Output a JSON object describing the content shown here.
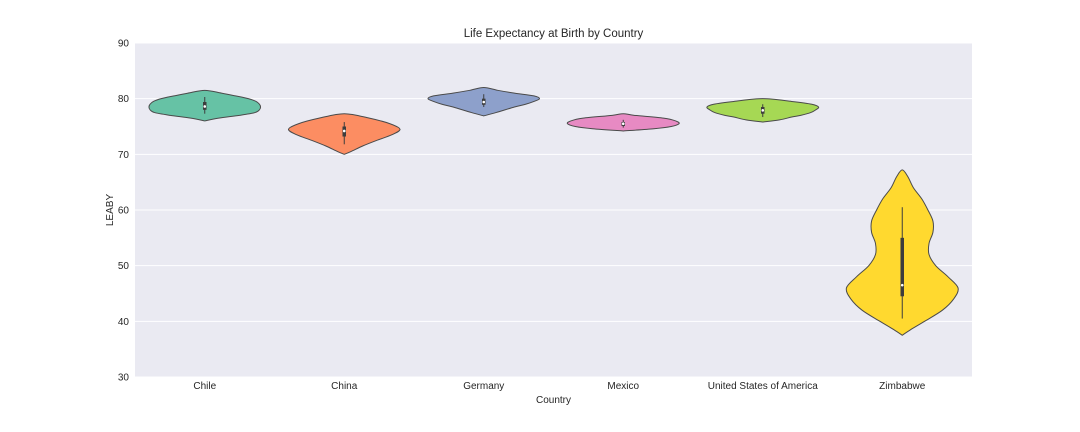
{
  "chart_data": {
    "type": "violin",
    "title": "Life Expectancy at Birth by Country",
    "xlabel": "Country",
    "ylabel": "LEABY",
    "ylim": [
      30,
      90
    ],
    "yticks": [
      30,
      40,
      50,
      60,
      70,
      80,
      90
    ],
    "grid": true,
    "categories": [
      "Chile",
      "China",
      "Germany",
      "Mexico",
      "United States of America",
      "Zimbabwe"
    ],
    "colors": [
      "#66c2a5",
      "#fc8d62",
      "#8da0cb",
      "#e78ac3",
      "#a6d854",
      "#ffd92f"
    ],
    "violins": [
      {
        "name": "Chile",
        "profile": [
          [
            76.0,
            0.0
          ],
          [
            76.5,
            0.25
          ],
          [
            77.0,
            0.62
          ],
          [
            77.5,
            0.9
          ],
          [
            78.0,
            0.98
          ],
          [
            78.5,
            1.0
          ],
          [
            79.0,
            0.98
          ],
          [
            79.5,
            0.92
          ],
          [
            80.0,
            0.78
          ],
          [
            80.5,
            0.55
          ],
          [
            81.0,
            0.3
          ],
          [
            81.5,
            0.0
          ]
        ],
        "q1": 78.0,
        "median": 78.6,
        "q3": 79.4,
        "whisker_low": 77.3,
        "whisker_high": 80.3
      },
      {
        "name": "China",
        "profile": [
          [
            70.0,
            0.0
          ],
          [
            70.5,
            0.12
          ],
          [
            71.5,
            0.33
          ],
          [
            72.5,
            0.58
          ],
          [
            73.5,
            0.85
          ],
          [
            74.5,
            1.0
          ],
          [
            75.5,
            0.82
          ],
          [
            76.5,
            0.45
          ],
          [
            77.3,
            0.0
          ]
        ],
        "q1": 73.2,
        "median": 74.2,
        "q3": 75.0,
        "whisker_low": 71.8,
        "whisker_high": 75.8
      },
      {
        "name": "Germany",
        "profile": [
          [
            76.9,
            0.0
          ],
          [
            77.5,
            0.22
          ],
          [
            78.5,
            0.55
          ],
          [
            79.0,
            0.75
          ],
          [
            79.5,
            0.9
          ],
          [
            80.0,
            1.0
          ],
          [
            80.5,
            0.9
          ],
          [
            81.0,
            0.55
          ],
          [
            81.5,
            0.25
          ],
          [
            82.0,
            0.0
          ]
        ],
        "q1": 78.9,
        "median": 79.4,
        "q3": 80.0,
        "whisker_low": 78.5,
        "whisker_high": 80.8
      },
      {
        "name": "Mexico",
        "profile": [
          [
            74.2,
            0.0
          ],
          [
            74.6,
            0.55
          ],
          [
            75.0,
            0.86
          ],
          [
            75.5,
            1.0
          ],
          [
            76.0,
            0.94
          ],
          [
            76.5,
            0.72
          ],
          [
            77.0,
            0.2
          ],
          [
            77.3,
            0.0
          ]
        ],
        "q1": 75.1,
        "median": 75.5,
        "q3": 75.8,
        "whisker_low": 74.8,
        "whisker_high": 76.2
      },
      {
        "name": "United States of America",
        "profile": [
          [
            75.8,
            0.0
          ],
          [
            76.2,
            0.3
          ],
          [
            76.7,
            0.52
          ],
          [
            77.0,
            0.68
          ],
          [
            77.5,
            0.86
          ],
          [
            78.0,
            0.95
          ],
          [
            78.5,
            1.0
          ],
          [
            79.0,
            0.88
          ],
          [
            79.5,
            0.52
          ],
          [
            80.0,
            0.0
          ]
        ],
        "q1": 77.3,
        "median": 77.9,
        "q3": 78.5,
        "whisker_low": 76.7,
        "whisker_high": 79.0
      },
      {
        "name": "Zimbabwe",
        "profile": [
          [
            37.5,
            0.0
          ],
          [
            38.5,
            0.15
          ],
          [
            40.0,
            0.4
          ],
          [
            42.0,
            0.72
          ],
          [
            44.0,
            0.92
          ],
          [
            46.0,
            1.0
          ],
          [
            48.0,
            0.82
          ],
          [
            50.0,
            0.6
          ],
          [
            52.0,
            0.48
          ],
          [
            54.0,
            0.48
          ],
          [
            56.0,
            0.55
          ],
          [
            58.0,
            0.55
          ],
          [
            60.0,
            0.46
          ],
          [
            62.0,
            0.35
          ],
          [
            64.0,
            0.2
          ],
          [
            66.0,
            0.1
          ],
          [
            67.2,
            0.0
          ]
        ],
        "q1": 44.5,
        "median": 46.5,
        "q3": 55.0,
        "whisker_low": 40.5,
        "whisker_high": 60.5
      }
    ]
  }
}
